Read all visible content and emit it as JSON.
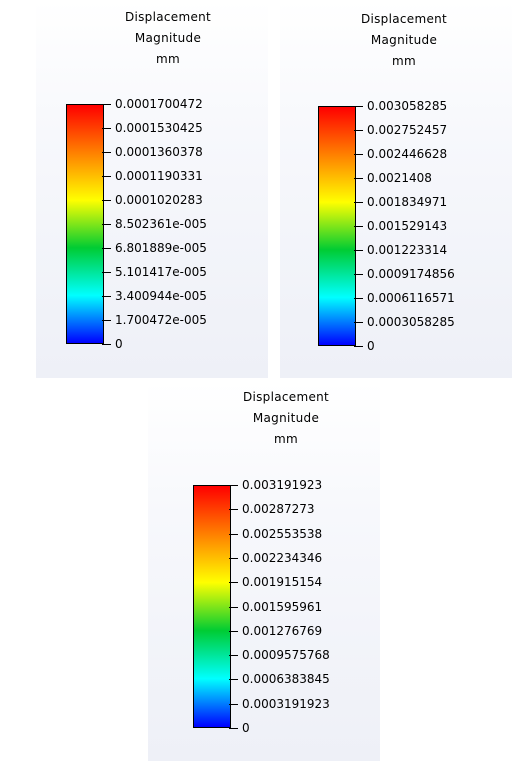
{
  "chart_data": [
    {
      "type": "colorbar",
      "title_lines": [
        "Displacement",
        "Magnitude",
        "mm"
      ],
      "tick_labels": [
        "0.0001700472",
        "0.0001530425",
        "0.0001360378",
        "0.0001190331",
        "0.0001020283",
        "8.502361e-005",
        "6.801889e-005",
        "5.101417e-005",
        "3.400944e-005",
        "1.700472e-005",
        "0"
      ],
      "range": [
        0,
        0.0001700472
      ],
      "colormap": [
        "#ff0000",
        "#ff8000",
        "#ffff00",
        "#00cc33",
        "#00ffff",
        "#0000ff"
      ]
    },
    {
      "type": "colorbar",
      "title_lines": [
        "Displacement",
        "Magnitude",
        "mm"
      ],
      "tick_labels": [
        "0.003058285",
        "0.002752457",
        "0.002446628",
        "0.0021408",
        "0.001834971",
        "0.001529143",
        "0.001223314",
        "0.0009174856",
        "0.0006116571",
        "0.0003058285",
        "0"
      ],
      "range": [
        0,
        0.003058285
      ],
      "colormap": [
        "#ff0000",
        "#ff8000",
        "#ffff00",
        "#00cc33",
        "#00ffff",
        "#0000ff"
      ]
    },
    {
      "type": "colorbar",
      "title_lines": [
        "Displacement",
        "Magnitude",
        "mm"
      ],
      "tick_labels": [
        "0.003191923",
        "0.00287273",
        "0.002553538",
        "0.002234346",
        "0.001915154",
        "0.001595961",
        "0.001276769",
        "0.0009575768",
        "0.0006383845",
        "0.0003191923",
        "0"
      ],
      "range": [
        0,
        0.003191923
      ],
      "colormap": [
        "#ff0000",
        "#ff8000",
        "#ffff00",
        "#00cc33",
        "#00ffff",
        "#0000ff"
      ]
    }
  ]
}
